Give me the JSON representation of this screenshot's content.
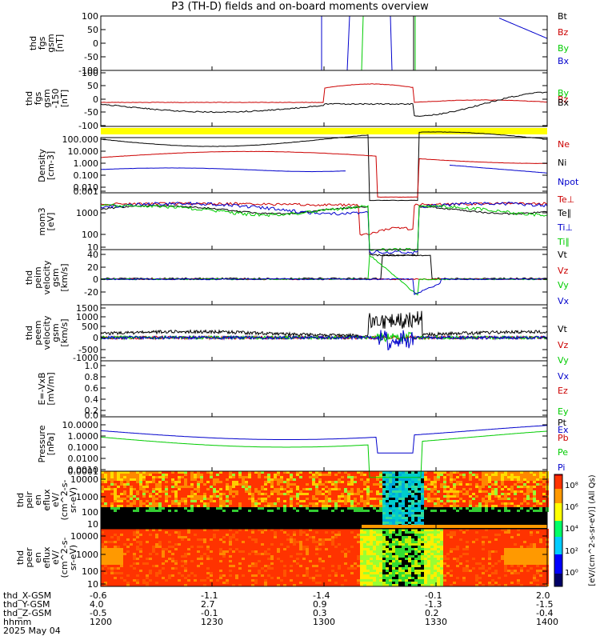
{
  "title": "P3 (TH-D) fields and on-board moments overview",
  "panels": [
    {
      "id": "fgs1",
      "ylabel": [
        "thd",
        "fgs",
        "gsm",
        "[nT]"
      ],
      "ticks": [
        "100",
        "50",
        "0",
        "-50",
        "-100"
      ],
      "legend": [
        {
          "t": "Bt",
          "c": "#000000"
        },
        {
          "t": "Bz",
          "c": "#cc0000"
        },
        {
          "t": "By",
          "c": "#00cc00"
        },
        {
          "t": "Bx",
          "c": "#0000cc"
        }
      ]
    },
    {
      "id": "fgs2",
      "ylabel": [
        "thd",
        "fgs",
        "gsm",
        "-150",
        "[nT]"
      ],
      "ticks": [
        "100",
        "50",
        "0",
        "-50",
        "-100"
      ],
      "legend": [
        {
          "t": "By",
          "c": "#00cc00"
        },
        {
          "t": "Bz",
          "c": "#cc0000"
        },
        {
          "t": "Bx",
          "c": "#000000"
        }
      ]
    },
    {
      "id": "density",
      "ylabel": [
        "Density",
        "[cm-3]"
      ],
      "ticks": [
        "100.000",
        "10.000",
        "1.000",
        "0.100",
        "0.010",
        "0.001"
      ],
      "legend": [
        {
          "t": "Ne",
          "c": "#cc0000"
        },
        {
          "t": "Ni",
          "c": "#000000"
        },
        {
          "t": "Npot",
          "c": "#0000cc"
        }
      ]
    },
    {
      "id": "temp",
      "ylabel": [
        "mom3",
        "[eV]"
      ],
      "ticks": [
        "1000",
        "100",
        "10"
      ],
      "legend": [
        {
          "t": "Te⊥",
          "c": "#cc0000"
        },
        {
          "t": "Te∥",
          "c": "#000000"
        },
        {
          "t": "Ti⊥",
          "c": "#0000cc"
        },
        {
          "t": "Ti∥",
          "c": "#00cc00"
        }
      ]
    },
    {
      "id": "peim",
      "ylabel": [
        "thd",
        "peim",
        "velocity",
        "gsm",
        "[km/s]"
      ],
      "ticks": [
        "40",
        "20",
        "0",
        "-20"
      ],
      "legend": [
        {
          "t": "Vt",
          "c": "#000000"
        },
        {
          "t": "Vz",
          "c": "#cc0000"
        },
        {
          "t": "Vy",
          "c": "#00cc00"
        },
        {
          "t": "Vx",
          "c": "#0000cc"
        }
      ]
    },
    {
      "id": "peem",
      "ylabel": [
        "thd",
        "peem",
        "velocity",
        "gsm",
        "[km/s]"
      ],
      "ticks": [
        "1500",
        "1000",
        "500",
        "0",
        "-500",
        "-1000"
      ],
      "legend": [
        {
          "t": "Vt",
          "c": "#000000"
        },
        {
          "t": "Vz",
          "c": "#cc0000"
        },
        {
          "t": "Vy",
          "c": "#00cc00"
        },
        {
          "t": "Vx",
          "c": "#0000cc"
        }
      ]
    },
    {
      "id": "efield",
      "ylabel": [
        "E=-VxB",
        "[mV/m]"
      ],
      "ticks": [
        "1.0",
        "0.8",
        "0.6",
        "0.4",
        "0.2",
        "0.0"
      ],
      "legend": [
        {
          "t": "Ez",
          "c": "#cc0000"
        },
        {
          "t": "Ey",
          "c": "#00cc00"
        },
        {
          "t": "Ex",
          "c": "#0000cc"
        }
      ]
    },
    {
      "id": "pressure",
      "ylabel": [
        "Pressure",
        "[nPa]"
      ],
      "ticks": [
        "10.0000",
        "1.0000",
        "0.1000",
        "0.0100",
        "0.0010",
        "0.0001"
      ],
      "legend": [
        {
          "t": "Pt",
          "c": "#000000"
        },
        {
          "t": "Pb",
          "c": "#cc0000"
        },
        {
          "t": "Pe",
          "c": "#00cc00"
        },
        {
          "t": "Pi",
          "c": "#0000cc"
        }
      ]
    },
    {
      "id": "peir",
      "ylabel": [
        "thd",
        "peir",
        "en",
        "eflux",
        "eV/",
        "(cm^2-s-",
        "sr-eV)"
      ],
      "ticks": [
        "10000",
        "1000",
        "100",
        "10"
      ],
      "legend": []
    },
    {
      "id": "peer",
      "ylabel": [
        "thd",
        "peer",
        "en",
        "eflux",
        "eV/",
        "(cm^2-s-",
        "sr-eV)"
      ],
      "ticks": [
        "10000",
        "1000",
        "100",
        "10"
      ],
      "legend": []
    }
  ],
  "colorbar": {
    "ticks": [
      "10⁸",
      "10⁶",
      "10⁴",
      "10²",
      "10⁰"
    ],
    "label": "[eV/(cm^2-s-sr-eV)] (All Qs)"
  },
  "footer": {
    "rows": [
      {
        "label": "thd_X-GSM",
        "values": [
          "-0.6",
          "-1.1",
          "-1.4",
          "-0.1",
          "2.0"
        ]
      },
      {
        "label": "thd_Y-GSM",
        "values": [
          "4.0",
          "2.7",
          "0.9",
          "-1.3",
          "-1.5"
        ]
      },
      {
        "label": "thd_Z-GSM",
        "values": [
          "-0.5",
          "-0.1",
          "0.3",
          "0.2",
          "-0.4"
        ]
      },
      {
        "label": "hhmm",
        "values": [
          "1200",
          "1230",
          "1300",
          "1330",
          "1400"
        ]
      }
    ],
    "date": "2025 May 04"
  },
  "chart_data": {
    "type": "line",
    "x_axis": {
      "label": "hhmm",
      "ticks": [
        "1200",
        "1230",
        "1300",
        "1330",
        "1400"
      ]
    },
    "panels": [
      {
        "name": "fgs gsm",
        "ylim": [
          -100,
          100
        ],
        "series": [
          "Bt",
          "Bz",
          "By",
          "Bx"
        ]
      },
      {
        "name": "fgs gsm -150",
        "ylim": [
          -120,
          100
        ],
        "series": [
          "By",
          "Bz",
          "Bx"
        ]
      },
      {
        "name": "Density",
        "scale": "log",
        "ylim": [
          0.001,
          100
        ],
        "series": [
          "Ne",
          "Ni",
          "Npot"
        ]
      },
      {
        "name": "mom3",
        "scale": "log",
        "ylim": [
          10,
          3000
        ],
        "series": [
          "Te⊥",
          "Te∥",
          "Ti⊥",
          "Ti∥"
        ]
      },
      {
        "name": "peim velocity gsm",
        "ylim": [
          -30,
          40
        ],
        "series": [
          "Vt",
          "Vz",
          "Vy",
          "Vx"
        ]
      },
      {
        "name": "peem velocity gsm",
        "ylim": [
          -1000,
          1500
        ],
        "series": [
          "Vt",
          "Vz",
          "Vy",
          "Vx"
        ]
      },
      {
        "name": "E=-VxB",
        "ylim": [
          0,
          1
        ],
        "series": [
          "Ez",
          "Ey",
          "Ex"
        ]
      },
      {
        "name": "Pressure",
        "scale": "log",
        "ylim": [
          0.0001,
          10
        ],
        "series": [
          "Pt",
          "Pb",
          "Pe",
          "Pi"
        ]
      },
      {
        "name": "peir en eflux",
        "type": "heatmap",
        "ylim": [
          10,
          10000
        ]
      },
      {
        "name": "peer en eflux",
        "type": "heatmap",
        "ylim": [
          10,
          10000
        ]
      }
    ]
  }
}
